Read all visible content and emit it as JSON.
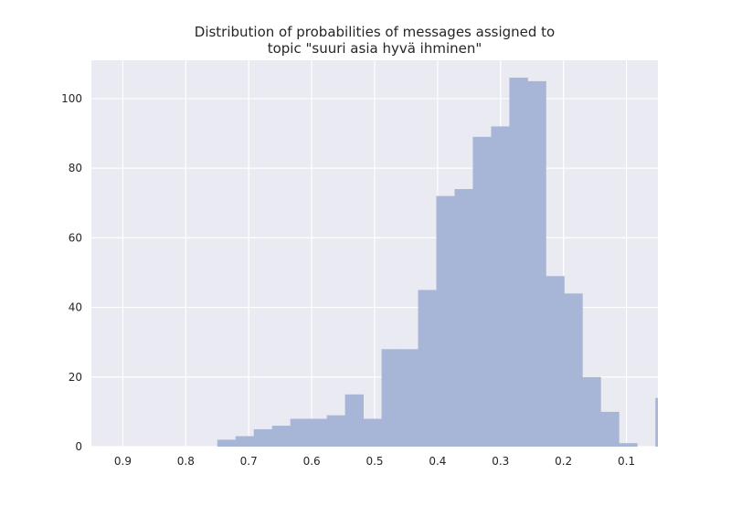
{
  "chart_data": {
    "type": "bar",
    "title_lines": [
      "Distribution of probabilities of messages assigned to",
      "topic \"suuri asia hyvä ihminen\""
    ],
    "xlabel": "",
    "ylabel": "",
    "x_axis_inverted": true,
    "xlim": [
      0.95,
      0.05
    ],
    "ylim": [
      0,
      111
    ],
    "xticks": [
      0.9,
      0.8,
      0.7,
      0.6,
      0.5,
      0.4,
      0.3,
      0.2,
      0.1
    ],
    "xtick_labels": [
      "0.9",
      "0.8",
      "0.7",
      "0.6",
      "0.5",
      "0.4",
      "0.3",
      "0.2",
      "0.1"
    ],
    "yticks": [
      0,
      20,
      40,
      60,
      80,
      100
    ],
    "ytick_labels": [
      "0",
      "20",
      "40",
      "60",
      "80",
      "100"
    ],
    "grid": true,
    "bar_color": "#a7b6d6",
    "background_color": "#eaeaf2",
    "grid_color": "#ffffff",
    "bins": [
      {
        "x_start": 0.75,
        "x_end": 0.721,
        "count": 2
      },
      {
        "x_start": 0.721,
        "x_end": 0.692,
        "count": 3
      },
      {
        "x_start": 0.692,
        "x_end": 0.663,
        "count": 5
      },
      {
        "x_start": 0.663,
        "x_end": 0.634,
        "count": 6
      },
      {
        "x_start": 0.634,
        "x_end": 0.605,
        "count": 8
      },
      {
        "x_start": 0.605,
        "x_end": 0.576,
        "count": 8
      },
      {
        "x_start": 0.576,
        "x_end": 0.547,
        "count": 9
      },
      {
        "x_start": 0.547,
        "x_end": 0.518,
        "count": 15
      },
      {
        "x_start": 0.518,
        "x_end": 0.489,
        "count": 8
      },
      {
        "x_start": 0.489,
        "x_end": 0.46,
        "count": 28
      },
      {
        "x_start": 0.46,
        "x_end": 0.431,
        "count": 28
      },
      {
        "x_start": 0.431,
        "x_end": 0.402,
        "count": 45
      },
      {
        "x_start": 0.402,
        "x_end": 0.373,
        "count": 72
      },
      {
        "x_start": 0.373,
        "x_end": 0.344,
        "count": 74
      },
      {
        "x_start": 0.344,
        "x_end": 0.315,
        "count": 89
      },
      {
        "x_start": 0.315,
        "x_end": 0.286,
        "count": 92
      },
      {
        "x_start": 0.286,
        "x_end": 0.257,
        "count": 106
      },
      {
        "x_start": 0.257,
        "x_end": 0.228,
        "count": 105
      },
      {
        "x_start": 0.228,
        "x_end": 0.199,
        "count": 49
      },
      {
        "x_start": 0.199,
        "x_end": 0.17,
        "count": 44
      },
      {
        "x_start": 0.17,
        "x_end": 0.141,
        "count": 20
      },
      {
        "x_start": 0.141,
        "x_end": 0.112,
        "count": 10
      },
      {
        "x_start": 0.112,
        "x_end": 0.083,
        "count": 1
      },
      {
        "x_start": 0.083,
        "x_end": 0.054,
        "count": 0
      },
      {
        "x_start": 0.054,
        "x_end": 0.025,
        "count": 14
      }
    ]
  }
}
